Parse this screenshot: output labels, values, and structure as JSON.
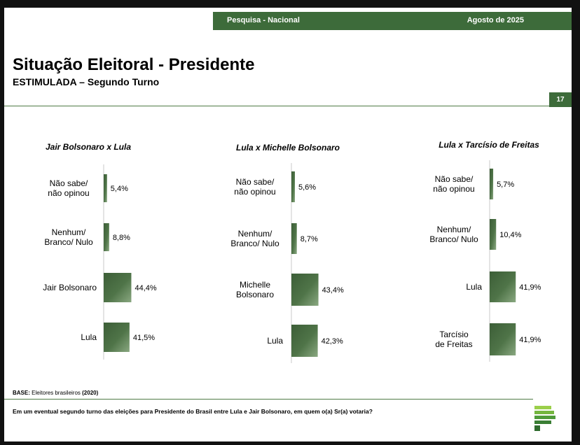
{
  "header": {
    "banner_left": "Pesquisa - Nacional",
    "banner_right": "Agosto de 2025",
    "title": "Situação Eleitoral - Presidente",
    "subtitle": "ESTIMULADA – Segundo Turno",
    "page_number": "17"
  },
  "footer": {
    "base_label": "BASE:",
    "base_text": " Eleitores brasileiros ",
    "base_n": "(2020)",
    "question": "Em um eventual segundo turno das eleições para Presidente do Brasil entre Lula e Jair Bolsonaro, em quem o(a) Sr(a) votaria?"
  },
  "colors": {
    "brand_green": "#3d6b3a",
    "bar_dark": "#3c5e37",
    "bar_light": "#7a9a72",
    "logo_light": "#9bcf4a",
    "logo_dark": "#2f6b2e"
  },
  "chart_data": [
    {
      "type": "bar",
      "orientation": "horizontal",
      "title": "Jair Bolsonaro x Lula",
      "categories": [
        "Não sabe/ não opinou",
        "Nenhum/ Branco/ Nulo",
        "Jair Bolsonaro",
        "Lula"
      ],
      "values": [
        5.4,
        8.8,
        44.4,
        41.5
      ],
      "labels": [
        "5,4%",
        "8,8%",
        "44,4%",
        "41,5%"
      ],
      "unit": "%"
    },
    {
      "type": "bar",
      "orientation": "horizontal",
      "title": "Lula x Michelle Bolsonaro",
      "categories": [
        "Não sabe/ não opinou",
        "Nenhum/ Branco/ Nulo",
        "Michelle Bolsonaro",
        "Lula"
      ],
      "values": [
        5.6,
        8.7,
        43.4,
        42.3
      ],
      "labels": [
        "5,6%",
        "8,7%",
        "43,4%",
        "42,3%"
      ],
      "unit": "%"
    },
    {
      "type": "bar",
      "orientation": "horizontal",
      "title": "Lula x Tarcísio de Freitas",
      "categories": [
        "Não sabe/ não opinou",
        "Nenhum/ Branco/ Nulo",
        "Lula",
        "Tarcísio de Freitas"
      ],
      "values": [
        5.7,
        10.4,
        41.9,
        41.9
      ],
      "labels": [
        "5,7%",
        "10,4%",
        "41,9%",
        "41,9%"
      ],
      "unit": "%"
    }
  ]
}
